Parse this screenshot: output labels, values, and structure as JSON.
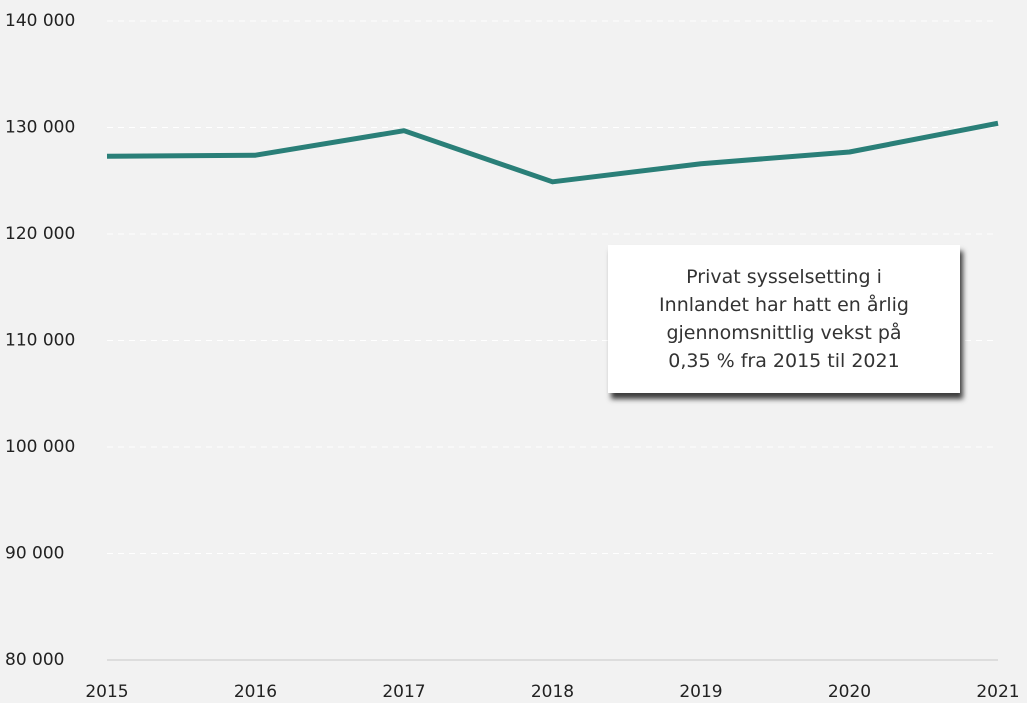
{
  "chart_data": {
    "type": "line",
    "x": [
      2015,
      2016,
      2017,
      2018,
      2019,
      2020,
      2021
    ],
    "series": [
      {
        "color": "#2a7f78",
        "values": [
          127300,
          127400,
          129700,
          124900,
          126600,
          127700,
          130400
        ]
      }
    ],
    "xlim": [
      2015,
      2021
    ],
    "xticks": [
      2015,
      2016,
      2017,
      2018,
      2019,
      2020,
      2021
    ],
    "ylim": [
      80000,
      140000
    ],
    "yticks": [
      {
        "value": 80000,
        "label": "80 000"
      },
      {
        "value": 90000,
        "label": "90 000"
      },
      {
        "value": 100000,
        "label": "100 000"
      },
      {
        "value": 110000,
        "label": "110 000"
      },
      {
        "value": 120000,
        "label": "120 000"
      },
      {
        "value": 130000,
        "label": "130 000"
      },
      {
        "value": 140000,
        "label": "140 000"
      }
    ],
    "grid": true,
    "annotation": [
      "Privat sysselsetting i",
      "Innlandet har hatt en årlig",
      "gjennomsnittlig vekst på",
      "0,35 % fra 2015 til 2021"
    ]
  }
}
